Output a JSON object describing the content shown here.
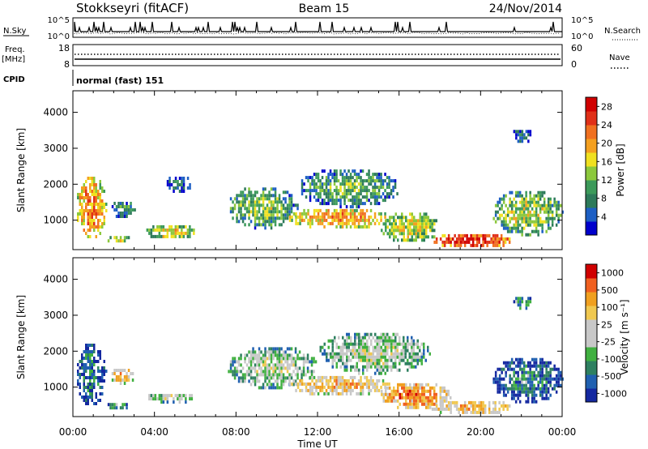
{
  "header": {
    "station": "Stokkseyri (fitACF)",
    "beam": "Beam 15",
    "date": "24/Nov/2014"
  },
  "noise_panel": {
    "left_label": "N.Sky",
    "right_label": "N.Search",
    "ticks_left": [
      "10^5",
      "10^0"
    ],
    "ticks_right": [
      "10^5",
      "10^0"
    ]
  },
  "freq_panel": {
    "left_label_line1": "Freq.",
    "left_label_line2": "[MHz]",
    "right_label": "Nave",
    "ticks_left": [
      "18",
      "8"
    ],
    "ticks_right": [
      "60",
      "0"
    ]
  },
  "cpid": {
    "label": "CPID",
    "value": "normal (fast) 151"
  },
  "x_axis": {
    "label": "Time UT",
    "ticks": [
      "00:00",
      "04:00",
      "08:00",
      "12:00",
      "16:00",
      "20:00",
      "00:00"
    ]
  },
  "colors": {
    "power_scale": [
      "#0000cc",
      "#1d5fc4",
      "#2d7a5a",
      "#3c9a5a",
      "#8cc83c",
      "#f0e020",
      "#f4a020",
      "#f07020",
      "#e03018",
      "#d00000"
    ],
    "velocity_scale": [
      "#1428a0",
      "#2060b0",
      "#2e8060",
      "#40b040",
      "#c8c8c8",
      "#c8c8c8",
      "#f0c850",
      "#f0a020",
      "#f06020",
      "#d00000"
    ]
  },
  "chart_data": [
    {
      "type": "heatmap",
      "title": "",
      "quantity": "Power",
      "xlabel": "",
      "ylabel": "Slant Range [km]",
      "xlim_hours": [
        0,
        24
      ],
      "ylim_km": [
        180,
        4600
      ],
      "yticks": [
        "1000",
        "2000",
        "3000",
        "4000"
      ],
      "colorbar": {
        "label": "Power [dB]",
        "ticks": [
          "28",
          "24",
          "20",
          "16",
          "12",
          "8",
          "4"
        ],
        "range": [
          0,
          30
        ]
      },
      "regions": [
        {
          "t": [
            0.1,
            1.6
          ],
          "r": [
            500,
            2300
          ],
          "level": 0.72
        },
        {
          "t": [
            1.6,
            2.8
          ],
          "r": [
            400,
            650
          ],
          "level": 0.55
        },
        {
          "t": [
            1.8,
            3.0
          ],
          "r": [
            1100,
            1600
          ],
          "level": 0.35
        },
        {
          "t": [
            3.5,
            6.0
          ],
          "r": [
            500,
            950
          ],
          "level": 0.55
        },
        {
          "t": [
            4.5,
            5.8
          ],
          "r": [
            1800,
            2300
          ],
          "level": 0.25
        },
        {
          "t": [
            7.5,
            11.0
          ],
          "r": [
            800,
            2000
          ],
          "level": 0.45
        },
        {
          "t": [
            10.5,
            15.5
          ],
          "r": [
            800,
            1400
          ],
          "level": 0.7
        },
        {
          "t": [
            11.0,
            16.0
          ],
          "r": [
            1400,
            2500
          ],
          "level": 0.4
        },
        {
          "t": [
            15.0,
            18.0
          ],
          "r": [
            400,
            1300
          ],
          "level": 0.55
        },
        {
          "t": [
            17.5,
            21.5
          ],
          "r": [
            250,
            700
          ],
          "level": 0.9
        },
        {
          "t": [
            20.5,
            24.0
          ],
          "r": [
            600,
            1900
          ],
          "level": 0.5
        },
        {
          "t": [
            21.5,
            22.5
          ],
          "r": [
            3200,
            3600
          ],
          "level": 0.25
        }
      ]
    },
    {
      "type": "heatmap",
      "title": "",
      "quantity": "Velocity",
      "xlabel": "Time UT",
      "ylabel": "Slant Range [km]",
      "xlim_hours": [
        0,
        24
      ],
      "ylim_km": [
        180,
        4600
      ],
      "yticks": [
        "1000",
        "2000",
        "3000",
        "4000"
      ],
      "colorbar": {
        "label": "Velocity [m s⁻¹]",
        "ticks": [
          "1000",
          "500",
          "100",
          "25",
          "-25",
          "-100",
          "-500",
          "-1000"
        ],
        "range": [
          -1200,
          1200
        ]
      },
      "regions": [
        {
          "t": [
            0.1,
            1.6
          ],
          "r": [
            500,
            2300
          ],
          "level": 0.25
        },
        {
          "t": [
            1.6,
            2.8
          ],
          "r": [
            400,
            650
          ],
          "level": 0.3
        },
        {
          "t": [
            1.8,
            3.0
          ],
          "r": [
            1100,
            1600
          ],
          "level": 0.7
        },
        {
          "t": [
            3.5,
            6.0
          ],
          "r": [
            600,
            900
          ],
          "level": 0.5
        },
        {
          "t": [
            7.5,
            12.0
          ],
          "r": [
            1000,
            2200
          ],
          "level": 0.5
        },
        {
          "t": [
            10.5,
            15.5
          ],
          "r": [
            800,
            1400
          ],
          "level": 0.72
        },
        {
          "t": [
            12.0,
            17.5
          ],
          "r": [
            1400,
            2600
          ],
          "level": 0.5
        },
        {
          "t": [
            15.0,
            18.5
          ],
          "r": [
            400,
            1200
          ],
          "level": 0.8
        },
        {
          "t": [
            17.5,
            21.5
          ],
          "r": [
            250,
            700
          ],
          "level": 0.72
        },
        {
          "t": [
            20.5,
            24.0
          ],
          "r": [
            600,
            1900
          ],
          "level": 0.25
        },
        {
          "t": [
            21.5,
            22.5
          ],
          "r": [
            3200,
            3600
          ],
          "level": 0.35
        }
      ]
    }
  ]
}
